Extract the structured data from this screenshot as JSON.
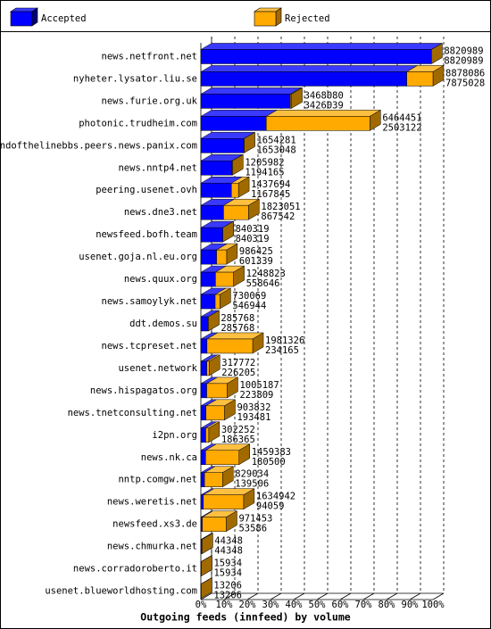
{
  "chart_data": {
    "type": "bar",
    "orientation": "horizontal",
    "stacked": true,
    "title": "Outgoing feeds (innfeed) by volume",
    "categories": [
      "news.netfront.net",
      "nyheter.lysator.liu.se",
      "news.furie.org.uk",
      "photonic.trudheim.com",
      "endofthelinebbs.peers.news.panix.com",
      "news.nntp4.net",
      "peering.usenet.ovh",
      "news.dne3.net",
      "newsfeed.bofh.team",
      "usenet.goja.nl.eu.org",
      "news.quux.org",
      "news.samoylyk.net",
      "ddt.demos.su",
      "news.tcpreset.net",
      "usenet.network",
      "news.hispagatos.org",
      "news.tnetconsulting.net",
      "i2pn.org",
      "news.nk.ca",
      "nntp.comgw.net",
      "news.weretis.net",
      "newsfeed.xs3.de",
      "news.chmurka.net",
      "news.corradoroberto.it",
      "usenet.blueworldhosting.com"
    ],
    "totals": [
      8820989,
      8878086,
      3468080,
      6464451,
      1654281,
      1205982,
      1437694,
      1823051,
      840319,
      986425,
      1248823,
      730069,
      285768,
      1981326,
      317772,
      1005187,
      903832,
      302252,
      1459383,
      829034,
      1634942,
      971453,
      44348,
      15934,
      13206
    ],
    "series": [
      {
        "name": "Accepted",
        "color": "#0000ff",
        "side": "#00007a",
        "top": "#3a3aff",
        "values": [
          8820989,
          7875028,
          3426039,
          2503122,
          1653048,
          1194165,
          1167845,
          867542,
          840319,
          601339,
          558646,
          546944,
          285768,
          234165,
          226205,
          223809,
          193481,
          186365,
          180500,
          139506,
          94059,
          53586,
          44348,
          15934,
          13206
        ]
      },
      {
        "name": "Rejected",
        "color": "#ffaa00",
        "side": "#a06a00",
        "top": "#ffc040",
        "values": [
          0,
          1003058,
          42041,
          3961329,
          1233,
          11817,
          269849,
          955509,
          0,
          385086,
          690177,
          183125,
          0,
          1747161,
          91567,
          781378,
          710351,
          115887,
          1278883,
          689528,
          1540883,
          917867,
          0,
          0,
          0
        ]
      }
    ],
    "xlim": [
      0,
      8878086
    ],
    "xticks": [
      {
        "value": 0,
        "label": "0%"
      },
      {
        "value": 887808.6,
        "label": "10%"
      },
      {
        "value": 1775617.2,
        "label": "20%"
      },
      {
        "value": 2663425.8,
        "label": "30%"
      },
      {
        "value": 3551234.4,
        "label": "40%"
      },
      {
        "value": 4439043,
        "label": "50%"
      },
      {
        "value": 5326851.6,
        "label": "60%"
      },
      {
        "value": 6214660.2,
        "label": "70%"
      },
      {
        "value": 7102468.8,
        "label": "80%"
      },
      {
        "value": 7990277.4,
        "label": "90%"
      },
      {
        "value": 8878086,
        "label": "100%"
      }
    ],
    "grid": true
  }
}
